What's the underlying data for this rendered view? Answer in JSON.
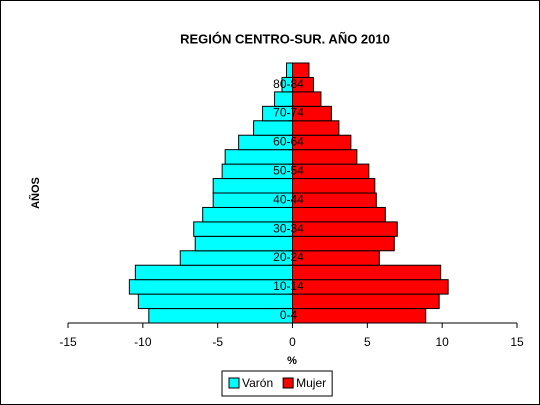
{
  "chart_data": {
    "type": "pyramid",
    "title": "REGIÓN CENTRO-SUR. AÑO 2010",
    "x_label": "%",
    "y_label": "AÑOS",
    "categories": [
      "0-4",
      null,
      "10-14",
      null,
      "20-24",
      null,
      "30-34",
      null,
      "40-44",
      null,
      "50-54",
      null,
      "60-64",
      null,
      "70-74",
      null,
      "80-84",
      null
    ],
    "series": [
      {
        "name": "Varón",
        "color": "#00ffff",
        "values": [
          -9.6,
          -10.3,
          -10.9,
          -10.5,
          -7.5,
          -6.5,
          -6.6,
          -6.0,
          -5.3,
          -5.3,
          -4.7,
          -4.5,
          -3.6,
          -2.6,
          -2.0,
          -1.2,
          -0.7,
          -0.4
        ]
      },
      {
        "name": "Mujer",
        "color": "#ff0000",
        "values": [
          8.9,
          9.8,
          10.4,
          9.9,
          5.8,
          6.8,
          7.0,
          6.2,
          5.6,
          5.5,
          5.1,
          4.3,
          3.9,
          3.1,
          2.6,
          1.9,
          1.4,
          1.1
        ]
      }
    ],
    "xlim": [
      -15,
      15
    ],
    "xticks": [
      -15,
      -10,
      -5,
      0,
      5,
      10,
      15
    ],
    "legend": "bottom"
  }
}
